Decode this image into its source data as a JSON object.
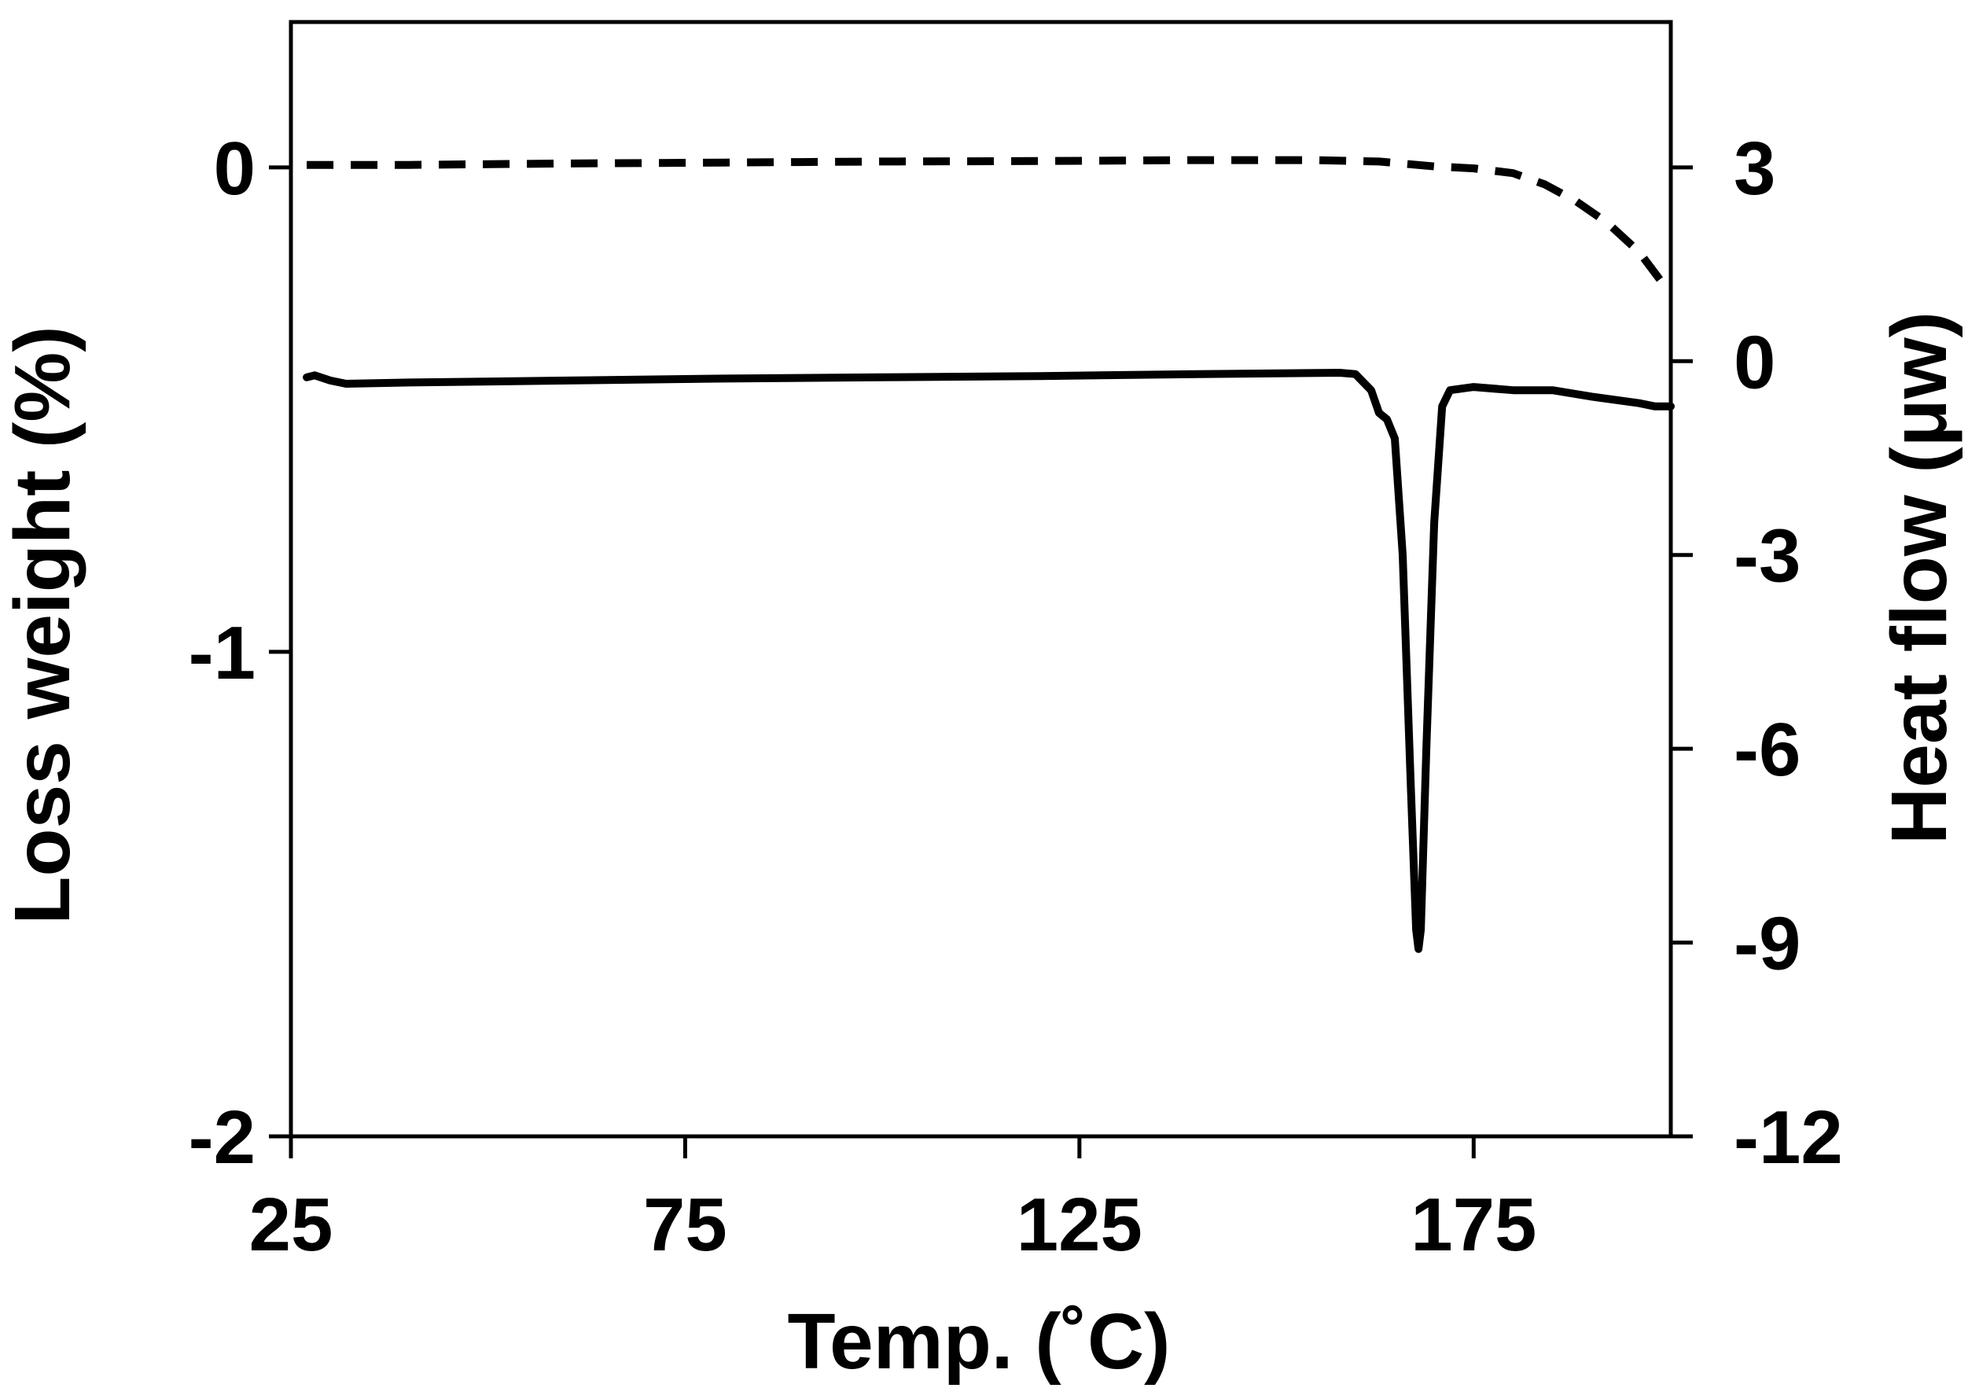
{
  "chart_data": {
    "type": "line",
    "xlabel": "Temp. (˚C)",
    "ylabel_left": "Loss weight (%)",
    "ylabel_right": "Heat flow (μw)",
    "xlim": [
      25,
      200
    ],
    "ylim_left": [
      -2,
      0.3
    ],
    "ylim_right": [
      -12,
      5.25
    ],
    "x_ticks": [
      25,
      75,
      125,
      175
    ],
    "y_left_ticks": [
      0,
      -1,
      -2
    ],
    "y_right_ticks": [
      3,
      0,
      -3,
      -6,
      -9,
      -12
    ],
    "grid": false,
    "legend": "none",
    "series": [
      {
        "axis": "left",
        "style": "dashed",
        "color": "#000000",
        "points": [
          [
            27,
            0.005
          ],
          [
            40,
            0.005
          ],
          [
            60,
            0.008
          ],
          [
            80,
            0.01
          ],
          [
            100,
            0.012
          ],
          [
            120,
            0.013
          ],
          [
            140,
            0.015
          ],
          [
            155,
            0.015
          ],
          [
            163,
            0.012
          ],
          [
            170,
            0.002
          ],
          [
            175,
            -0.002
          ],
          [
            180,
            -0.012
          ],
          [
            184,
            -0.035
          ],
          [
            188,
            -0.07
          ],
          [
            192,
            -0.115
          ],
          [
            196,
            -0.175
          ],
          [
            199,
            -0.24
          ],
          [
            200,
            -0.255
          ]
        ]
      },
      {
        "axis": "right",
        "style": "solid",
        "color": "#000000",
        "points": [
          [
            27,
            -0.25
          ],
          [
            28,
            -0.22
          ],
          [
            30,
            -0.3
          ],
          [
            32,
            -0.35
          ],
          [
            40,
            -0.33
          ],
          [
            60,
            -0.3
          ],
          [
            80,
            -0.27
          ],
          [
            100,
            -0.25
          ],
          [
            120,
            -0.23
          ],
          [
            140,
            -0.2
          ],
          [
            158,
            -0.18
          ],
          [
            160,
            -0.2
          ],
          [
            162,
            -0.45
          ],
          [
            163,
            -0.8
          ],
          [
            164,
            -0.9
          ],
          [
            165,
            -1.2
          ],
          [
            166,
            -3.0
          ],
          [
            167,
            -6.5
          ],
          [
            167.7,
            -8.8
          ],
          [
            168,
            -9.1
          ],
          [
            168.3,
            -8.8
          ],
          [
            169,
            -6.0
          ],
          [
            170,
            -2.5
          ],
          [
            171,
            -0.7
          ],
          [
            172,
            -0.45
          ],
          [
            175,
            -0.4
          ],
          [
            180,
            -0.45
          ],
          [
            185,
            -0.45
          ],
          [
            190,
            -0.55
          ],
          [
            196,
            -0.65
          ],
          [
            198,
            -0.7
          ],
          [
            200,
            -0.7
          ]
        ]
      }
    ]
  }
}
